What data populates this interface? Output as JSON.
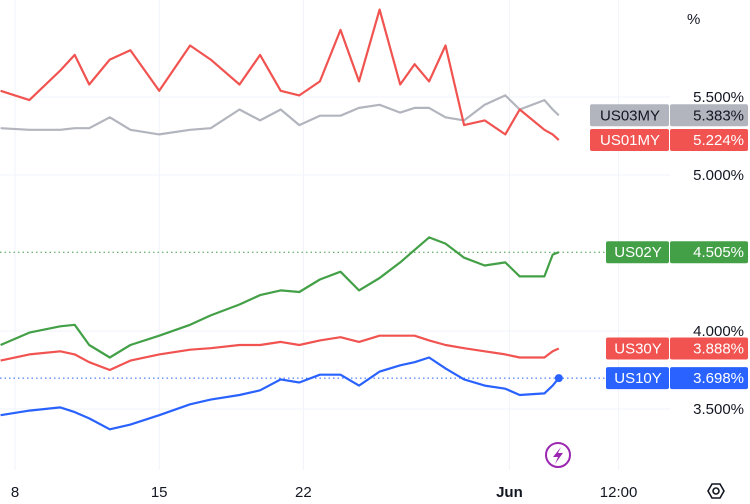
{
  "chart_data": {
    "type": "line",
    "unit_label": "%",
    "x_unit": "days since May 8",
    "x_ticks": [
      {
        "label": "8",
        "x": 0
      },
      {
        "label": "15",
        "x": 7
      },
      {
        "label": "22",
        "x": 14
      },
      {
        "label": "Jun",
        "x": 24
      },
      {
        "label": "12:00",
        "x": 29.3
      }
    ],
    "y_ticks": [
      {
        "label": "5.500%",
        "v": 5.5
      },
      {
        "label": "5.000%",
        "v": 5.0
      },
      {
        "label": "4.000%",
        "v": 4.0
      },
      {
        "label": "3.500%",
        "v": 3.5
      }
    ],
    "ylim": [
      3.25,
      6.12
    ],
    "xlim": [
      -0.73,
      31.5
    ],
    "grid": true,
    "x": [
      -0.7,
      0.7,
      2.2,
      2.9,
      3.6,
      4.6,
      5.6,
      7.0,
      8.5,
      9.5,
      10.9,
      11.9,
      12.9,
      13.8,
      14.8,
      15.8,
      16.7,
      17.7,
      18.7,
      19.4,
      20.1,
      20.9,
      21.8,
      22.8,
      23.8,
      24.5,
      25.7,
      26.1,
      26.4
    ],
    "series": [
      {
        "name": "US03MY",
        "color": "#b2b5be",
        "text_color": "#131722",
        "last": "5.383%",
        "dotted": false,
        "values": [
          5.3,
          5.29,
          5.29,
          5.3,
          5.3,
          5.37,
          5.29,
          5.26,
          5.29,
          5.3,
          5.42,
          5.35,
          5.42,
          5.32,
          5.38,
          5.38,
          5.43,
          5.45,
          5.4,
          5.43,
          5.43,
          5.37,
          5.35,
          5.45,
          5.51,
          5.42,
          5.48,
          5.42,
          5.383
        ]
      },
      {
        "name": "US01MY",
        "color": "#f05350",
        "text_color": "#ffffff",
        "last": "5.224%",
        "dotted": false,
        "values": [
          5.54,
          5.48,
          5.67,
          5.77,
          5.58,
          5.74,
          5.8,
          5.54,
          5.83,
          5.74,
          5.58,
          5.77,
          5.54,
          5.51,
          5.6,
          5.93,
          5.6,
          6.06,
          5.58,
          5.71,
          5.6,
          5.83,
          5.32,
          5.35,
          5.26,
          5.42,
          5.29,
          5.26,
          5.224
        ]
      },
      {
        "name": "US02Y",
        "color": "#43a047",
        "text_color": "#ffffff",
        "last": "4.505%",
        "dotted": true,
        "values": [
          3.91,
          3.99,
          4.03,
          4.04,
          3.91,
          3.83,
          3.91,
          3.97,
          4.04,
          4.1,
          4.17,
          4.23,
          4.26,
          4.25,
          4.33,
          4.38,
          4.26,
          4.34,
          4.44,
          4.52,
          4.6,
          4.56,
          4.47,
          4.42,
          4.44,
          4.35,
          4.35,
          4.49,
          4.505
        ]
      },
      {
        "name": "US30Y",
        "color": "#f05350",
        "text_color": "#ffffff",
        "last": "3.888%",
        "dotted": false,
        "values": [
          3.81,
          3.85,
          3.87,
          3.85,
          3.8,
          3.75,
          3.81,
          3.85,
          3.88,
          3.89,
          3.91,
          3.91,
          3.93,
          3.91,
          3.94,
          3.96,
          3.93,
          3.97,
          3.97,
          3.97,
          3.94,
          3.91,
          3.89,
          3.87,
          3.85,
          3.83,
          3.83,
          3.87,
          3.888
        ]
      },
      {
        "name": "US10Y",
        "color": "#2962ff",
        "text_color": "#ffffff",
        "last": "3.698%",
        "dotted": true,
        "values": [
          3.46,
          3.49,
          3.51,
          3.48,
          3.44,
          3.37,
          3.4,
          3.46,
          3.53,
          3.56,
          3.59,
          3.62,
          3.69,
          3.67,
          3.72,
          3.72,
          3.65,
          3.74,
          3.78,
          3.8,
          3.83,
          3.76,
          3.69,
          3.65,
          3.63,
          3.59,
          3.6,
          3.65,
          3.698
        ]
      }
    ],
    "icons": {
      "event": "lightning-icon",
      "settings": "settings-icon"
    },
    "event_color": "#9c27b0"
  }
}
